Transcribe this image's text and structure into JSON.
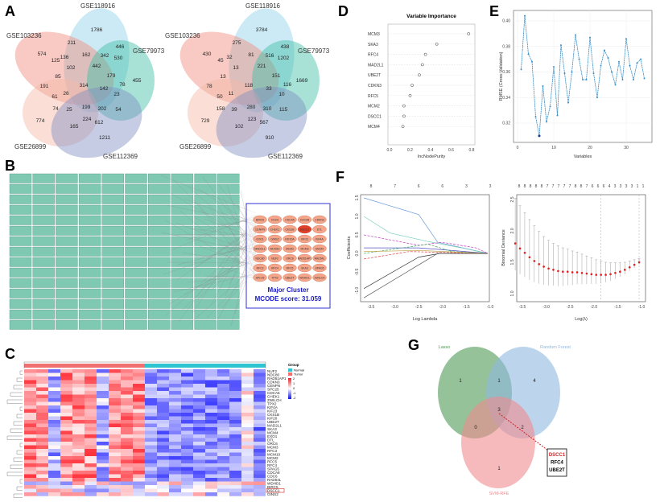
{
  "panel_letters": {
    "a": "A",
    "b": "B",
    "c": "C",
    "d": "D",
    "e": "E",
    "f": "F",
    "g": "G"
  },
  "venn_a": [
    {
      "sets": [
        "GSE118916",
        "GSE103236",
        "GSE79973",
        "GSE26899",
        "GSE112369"
      ],
      "colors": [
        "#8fd0e8",
        "#f08a7a",
        "#3fbfa6",
        "#f7b8a6",
        "#7e8fc0"
      ],
      "counts": [
        "1786",
        "211",
        "446",
        "574",
        "125",
        "136",
        "162",
        "342",
        "530",
        "442",
        "102",
        "179",
        "85",
        "455",
        "191",
        "314",
        "78",
        "142",
        "23",
        "61",
        "26",
        "74",
        "25",
        "199",
        "202",
        "54",
        "774",
        "224",
        "612",
        "165",
        "1211"
      ]
    },
    {
      "sets": [
        "GSE118916",
        "GSE103236",
        "GSE79973",
        "GSE26899",
        "GSE112369"
      ],
      "colors": [
        "#8fd0e8",
        "#f08a7a",
        "#3fbfa6",
        "#f7b8a6",
        "#7e8fc0"
      ],
      "counts": [
        "3784",
        "275",
        "438",
        "430",
        "45",
        "32",
        "81",
        "516",
        "1202",
        "221",
        "13",
        "151",
        "13",
        "1669",
        "78",
        "118",
        "116",
        "33",
        "10",
        "50",
        "11",
        "158",
        "39",
        "280",
        "310",
        "115",
        "729",
        "123",
        "567",
        "102",
        "910"
      ]
    }
  ],
  "ppi": {
    "cluster_genes": [
      "BIRC5",
      "CDC6",
      "CDCA5",
      "CDCA8",
      "CDKN3",
      "CENPN",
      "CHEK1",
      "CKS1B",
      "DSCC1",
      "DTL",
      "EXO1",
      "GINS2",
      "KIF20A",
      "KIF23",
      "KIF4A",
      "MAD2L1",
      "MCM10",
      "MCM2",
      "MCM3",
      "MCM4",
      "NDC80",
      "NUF2",
      "ORC6",
      "RAD51AP1",
      "RAD54L",
      "RFC3",
      "RFC4",
      "RFC5",
      "SKA3",
      "SPAG5",
      "SPC25",
      "TPX2",
      "UBE2T",
      "WDHD1",
      "ZWILCH"
    ],
    "highlight": "DSCC1",
    "cluster_title": "Major Cluster",
    "cluster_score": "MCODE score: 31.059",
    "node_color": "#7fc8b2",
    "cluster_color": "#f4a58a",
    "highlight_color": "#e0402a"
  },
  "heatmap": {
    "genes": [
      "NUF2",
      "NDC80",
      "RAD51AP1",
      "CDKN3",
      "CENPN",
      "SPC25",
      "CDCA5",
      "CHEK1",
      "ZWILCH",
      "TPX2",
      "KIF4A",
      "KIF23",
      "CKS1B",
      "KIF20",
      "UBE2T",
      "MAD2L1",
      "SKA3",
      "MCM4",
      "EXO1",
      "DTL",
      "ORC6",
      "MCM3",
      "RFC3",
      "MCM10",
      "MCM2",
      "RFC5",
      "RFC4",
      "SPAG5",
      "CDCA8",
      "CDC6",
      "RAD54L",
      "WDHD1",
      "BIRC5",
      "DSCC1",
      "GINS2"
    ],
    "highlight": "DSCC1",
    "legend_title": "Group",
    "groups": [
      {
        "name": "Normal",
        "color": "#2ec4d0"
      },
      {
        "name": "Tumor",
        "color": "#f07070"
      }
    ],
    "scale_ticks": [
      "2",
      "1",
      "0",
      "-1",
      "-2"
    ],
    "colors": {
      "high": "#e8202a",
      "mid": "#ffffff",
      "low": "#1010e0"
    }
  },
  "chart_data": [
    {
      "id": "D",
      "type": "scatter",
      "title": "Variable Importance",
      "xlabel": "IncNodePurity",
      "ylabel": "",
      "categories": [
        "MCM3",
        "SKA3",
        "RFC4",
        "MAD2L1",
        "UBE2T",
        "CDKN3",
        "RFC5",
        "MCM2",
        "DSCC1",
        "MCM4"
      ],
      "values": [
        0.77,
        0.46,
        0.35,
        0.32,
        0.29,
        0.22,
        0.2,
        0.14,
        0.14,
        0.13
      ],
      "xlim": [
        0,
        0.8
      ],
      "xticks": [
        "0.0",
        "0.2",
        "0.4",
        "0.6",
        "0.8"
      ],
      "grid": true
    },
    {
      "id": "E",
      "type": "line",
      "title": "",
      "xlabel": "Variables",
      "ylabel": "RMSE (Cross-Validation)",
      "x": [
        1,
        2,
        3,
        4,
        5,
        6,
        7,
        8,
        9,
        10,
        11,
        12,
        13,
        14,
        15,
        16,
        17,
        18,
        19,
        20,
        21,
        22,
        23,
        24,
        25,
        26,
        27,
        28,
        29,
        30,
        31,
        32,
        33,
        34,
        35
      ],
      "y": [
        0.362,
        0.404,
        0.374,
        0.368,
        0.325,
        0.31,
        0.349,
        0.321,
        0.333,
        0.364,
        0.326,
        0.381,
        0.359,
        0.336,
        0.36,
        0.389,
        0.37,
        0.354,
        0.354,
        0.387,
        0.359,
        0.34,
        0.365,
        0.377,
        0.371,
        0.36,
        0.35,
        0.368,
        0.354,
        0.386,
        0.365,
        0.354,
        0.367,
        0.37,
        0.355
      ],
      "xlim": [
        0,
        37
      ],
      "ylim": [
        0.3,
        0.41
      ],
      "xticks": [
        "0",
        "10",
        "20",
        "30"
      ],
      "yticks": [
        "0.32",
        "0.34",
        "0.36",
        "0.38",
        "0.40"
      ],
      "color": "#3a8fc8",
      "best_point_color": "#1a3a8a",
      "grid": true
    },
    {
      "id": "F-left",
      "type": "line",
      "title": "",
      "xlabel": "Log Lambda",
      "ylabel": "Coefficients",
      "xlim": [
        -3.7,
        -0.95
      ],
      "ylim": [
        -1.3,
        1.6
      ],
      "xticks": [
        "-3.5",
        "-3.0",
        "-2.5",
        "-2.0",
        "-1.5",
        "-1.0"
      ],
      "yticks": [
        "-1.0",
        "-0.5",
        "0.0",
        "0.5",
        "1.0",
        "1.5"
      ],
      "top_ticks": [
        "8",
        "7",
        "6",
        "6",
        "3",
        "3"
      ],
      "series": [
        {
          "color": "#6a9ad8",
          "dash": false,
          "points": [
            [
              -3.65,
              1.5
            ],
            [
              -2.5,
              1.05
            ],
            [
              -2.1,
              0.3
            ],
            [
              -1.05,
              0
            ]
          ]
        },
        {
          "color": "#7ad0c0",
          "dash": false,
          "points": [
            [
              -3.65,
              1.0
            ],
            [
              -3.1,
              0.55
            ],
            [
              -2.3,
              0.32
            ],
            [
              -1.6,
              0.15
            ],
            [
              -1.05,
              0
            ]
          ]
        },
        {
          "color": "#c040c0",
          "dash": true,
          "points": [
            [
              -3.65,
              0.5
            ],
            [
              -2.5,
              0.22
            ],
            [
              -2.0,
              0.3
            ],
            [
              -1.3,
              0.15
            ],
            [
              -1.05,
              0
            ]
          ]
        },
        {
          "color": "#5050c0",
          "dash": false,
          "points": [
            [
              -3.65,
              0.15
            ],
            [
              -2.5,
              0.15
            ],
            [
              -2.0,
              0.1
            ],
            [
              -1.05,
              0
            ]
          ]
        },
        {
          "color": "#40b060",
          "dash": true,
          "points": [
            [
              -3.65,
              0.0
            ],
            [
              -2.3,
              0.25
            ],
            [
              -1.8,
              0.05
            ],
            [
              -1.05,
              0
            ]
          ]
        },
        {
          "color": "#e04040",
          "dash": true,
          "points": [
            [
              -3.65,
              -0.15
            ],
            [
              -2.7,
              0.05
            ],
            [
              -1.05,
              0
            ]
          ]
        },
        {
          "color": "#c0a040",
          "dash": false,
          "points": [
            [
              -3.65,
              0.05
            ],
            [
              -2.5,
              0.08
            ],
            [
              -1.05,
              0
            ]
          ]
        },
        {
          "color": "#333333",
          "dash": false,
          "points": [
            [
              -3.65,
              -0.95
            ],
            [
              -2.5,
              -0.1
            ],
            [
              -2.05,
              0.0
            ],
            [
              -1.05,
              0
            ]
          ]
        },
        {
          "color": "#555555",
          "dash": false,
          "points": [
            [
              -3.65,
              -1.2
            ],
            [
              -2.1,
              0.0
            ],
            [
              -1.05,
              0
            ]
          ]
        }
      ]
    },
    {
      "id": "F-right",
      "type": "scatter",
      "title": "",
      "xlabel": "Log(λ)",
      "ylabel": "Binomial Deviance",
      "xlim": [
        -3.7,
        -0.95
      ],
      "ylim": [
        0.85,
        2.65
      ],
      "xticks": [
        "-3.5",
        "-3.0",
        "-2.5",
        "-2.0",
        "-1.5",
        "-1.0"
      ],
      "yticks": [
        "1.0",
        "1.5",
        "2.0",
        "2.5"
      ],
      "top_ticks": [
        "8",
        "8",
        "8",
        "8",
        "8",
        "7",
        "7",
        "7",
        "7",
        "7",
        "8",
        "8",
        "7",
        "6",
        "6",
        "6",
        "4",
        "3",
        "3",
        "3",
        "3",
        "1",
        "1"
      ],
      "x": [
        -3.65,
        -3.55,
        -3.45,
        -3.35,
        -3.25,
        -3.15,
        -3.05,
        -2.95,
        -2.85,
        -2.75,
        -2.65,
        -2.55,
        -2.45,
        -2.35,
        -2.25,
        -2.15,
        -2.05,
        -1.95,
        -1.85,
        -1.75,
        -1.65,
        -1.55,
        -1.45,
        -1.35,
        -1.25,
        -1.15,
        -1.05
      ],
      "mean": [
        1.8,
        1.72,
        1.65,
        1.58,
        1.52,
        1.47,
        1.43,
        1.4,
        1.38,
        1.36,
        1.35,
        1.35,
        1.34,
        1.34,
        1.33,
        1.32,
        1.31,
        1.3,
        1.3,
        1.3,
        1.31,
        1.33,
        1.35,
        1.38,
        1.42,
        1.46,
        1.5
      ],
      "se": [
        0.72,
        0.68,
        0.64,
        0.6,
        0.56,
        0.52,
        0.48,
        0.45,
        0.42,
        0.4,
        0.38,
        0.36,
        0.34,
        0.32,
        0.3,
        0.28,
        0.26,
        0.24,
        0.22,
        0.2,
        0.18,
        0.16,
        0.14,
        0.12,
        0.1,
        0.08,
        0.06
      ],
      "vlines": [
        -1.85,
        -1.05
      ],
      "point_color": "#e02020"
    }
  ],
  "venn_g": {
    "sets": [
      {
        "name": "Lasso",
        "color": "#4f9a55"
      },
      {
        "name": "Random Forest",
        "color": "#8fb8e0"
      },
      {
        "name": "SVM-RFE",
        "color": "#f08a90"
      }
    ],
    "counts": {
      "lasso_only": "1",
      "lasso_rf": "1",
      "rf_only": "4",
      "all": "3",
      "lasso_svm": "0",
      "rf_svm": "2",
      "svm_only": "1"
    },
    "genes": [
      {
        "name": "DSCC1",
        "color": "#e02020"
      },
      {
        "name": "RFC4",
        "color": "#000000"
      },
      {
        "name": "UBE2T",
        "color": "#000000"
      }
    ]
  }
}
